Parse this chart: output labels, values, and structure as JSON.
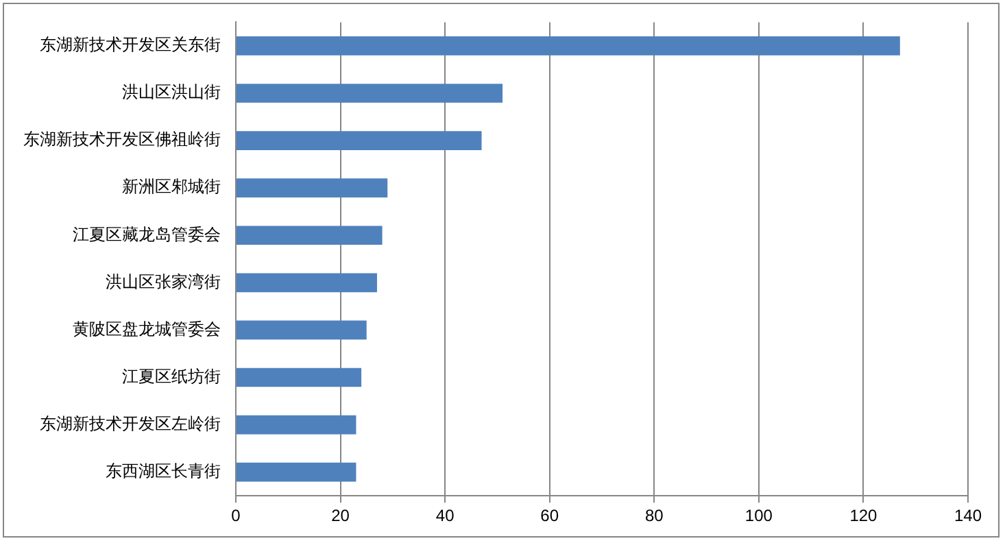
{
  "chart_data": {
    "type": "bar",
    "orientation": "horizontal",
    "categories": [
      "东湖新技术开发区关东街",
      "洪山区洪山街",
      "东湖新技术开发区佛祖岭街",
      "新洲区邾城街",
      "江夏区藏龙岛管委会",
      "洪山区张家湾街",
      "黄陂区盘龙城管委会",
      "江夏区纸坊街",
      "东湖新技术开发区左岭街",
      "东西湖区长青街"
    ],
    "values": [
      127,
      51,
      47,
      29,
      28,
      27,
      25,
      24,
      23,
      23
    ],
    "color": "#4f81bd",
    "xlim": [
      0,
      140
    ],
    "xticks": [
      0,
      20,
      40,
      60,
      80,
      100,
      120,
      140
    ],
    "grid": "x"
  }
}
